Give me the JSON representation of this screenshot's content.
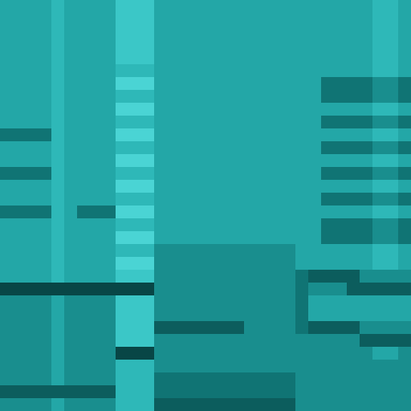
{
  "chart_data": {
    "type": "heatmap",
    "x": [
      0,
      1,
      2,
      3,
      4,
      5,
      6,
      7,
      8,
      9,
      10,
      11,
      12,
      13,
      14,
      15,
      16,
      17,
      18,
      19,
      20,
      21,
      22,
      23,
      24,
      25,
      26,
      27,
      28,
      29,
      30,
      31
    ],
    "y": [
      0,
      1,
      2,
      3,
      4,
      5,
      6,
      7,
      8,
      9,
      10,
      11,
      12,
      13,
      14,
      15,
      16,
      17,
      18,
      19,
      20,
      21,
      22,
      23,
      24,
      25,
      26,
      27,
      28,
      29,
      30,
      31
    ],
    "xlim": [
      -0.5,
      31.5
    ],
    "ylim": [
      31.5,
      -0.5
    ],
    "zlim": [
      0,
      9
    ],
    "tick_labels": false,
    "grid": false,
    "z": [
      [
        5,
        5,
        5,
        5,
        6,
        5,
        5,
        5,
        5,
        7,
        7,
        7,
        5,
        5,
        5,
        5,
        5,
        5,
        5,
        5,
        5,
        5,
        5,
        5,
        5,
        5,
        5,
        5,
        5,
        6,
        6,
        5
      ],
      [
        5,
        5,
        5,
        5,
        6,
        5,
        5,
        5,
        5,
        7,
        7,
        7,
        5,
        5,
        5,
        5,
        5,
        5,
        5,
        5,
        5,
        5,
        5,
        5,
        5,
        5,
        5,
        5,
        5,
        6,
        6,
        5
      ],
      [
        5,
        5,
        5,
        5,
        6,
        5,
        5,
        5,
        5,
        7,
        7,
        7,
        5,
        5,
        5,
        5,
        5,
        5,
        5,
        5,
        5,
        5,
        5,
        5,
        5,
        5,
        5,
        5,
        5,
        6,
        6,
        5
      ],
      [
        5,
        5,
        5,
        5,
        6,
        5,
        5,
        5,
        5,
        7,
        7,
        7,
        5,
        5,
        5,
        5,
        5,
        5,
        5,
        5,
        5,
        5,
        5,
        5,
        5,
        5,
        5,
        5,
        5,
        6,
        6,
        5
      ],
      [
        5,
        5,
        5,
        5,
        6,
        5,
        5,
        5,
        5,
        7,
        7,
        7,
        5,
        5,
        5,
        5,
        5,
        5,
        5,
        5,
        5,
        5,
        5,
        5,
        5,
        5,
        5,
        5,
        5,
        6,
        6,
        5
      ],
      [
        5,
        5,
        5,
        5,
        6,
        5,
        5,
        5,
        5,
        6,
        6,
        6,
        5,
        5,
        5,
        5,
        5,
        5,
        5,
        5,
        5,
        5,
        5,
        5,
        5,
        5,
        5,
        5,
        5,
        6,
        6,
        5
      ],
      [
        5,
        5,
        5,
        5,
        6,
        5,
        5,
        5,
        5,
        8,
        8,
        8,
        5,
        5,
        5,
        5,
        5,
        5,
        5,
        5,
        5,
        5,
        5,
        5,
        5,
        3,
        3,
        3,
        3,
        4,
        4,
        3
      ],
      [
        5,
        5,
        5,
        5,
        6,
        5,
        5,
        5,
        5,
        6,
        6,
        6,
        5,
        5,
        5,
        5,
        5,
        5,
        5,
        5,
        5,
        5,
        5,
        5,
        5,
        3,
        3,
        3,
        3,
        4,
        4,
        3
      ],
      [
        5,
        5,
        5,
        5,
        6,
        5,
        5,
        5,
        5,
        8,
        8,
        8,
        5,
        5,
        5,
        5,
        5,
        5,
        5,
        5,
        5,
        5,
        5,
        5,
        5,
        5,
        5,
        5,
        5,
        6,
        6,
        5
      ],
      [
        5,
        5,
        5,
        5,
        6,
        5,
        5,
        5,
        5,
        6,
        6,
        6,
        5,
        5,
        5,
        5,
        5,
        5,
        5,
        5,
        5,
        5,
        5,
        5,
        5,
        3,
        3,
        3,
        3,
        4,
        4,
        3
      ],
      [
        3,
        3,
        3,
        3,
        6,
        5,
        5,
        5,
        5,
        8,
        8,
        8,
        5,
        5,
        5,
        5,
        5,
        5,
        5,
        5,
        5,
        5,
        5,
        5,
        5,
        5,
        5,
        5,
        5,
        6,
        6,
        5
      ],
      [
        5,
        5,
        5,
        5,
        6,
        5,
        5,
        5,
        5,
        6,
        6,
        6,
        5,
        5,
        5,
        5,
        5,
        5,
        5,
        5,
        5,
        5,
        5,
        5,
        5,
        3,
        3,
        3,
        3,
        4,
        4,
        3
      ],
      [
        5,
        5,
        5,
        5,
        6,
        5,
        5,
        5,
        5,
        8,
        8,
        8,
        5,
        5,
        5,
        5,
        5,
        5,
        5,
        5,
        5,
        5,
        5,
        5,
        5,
        5,
        5,
        5,
        5,
        6,
        6,
        5
      ],
      [
        3,
        3,
        3,
        3,
        6,
        5,
        5,
        5,
        5,
        6,
        6,
        6,
        5,
        5,
        5,
        5,
        5,
        5,
        5,
        5,
        5,
        5,
        5,
        5,
        5,
        3,
        3,
        3,
        3,
        4,
        4,
        3
      ],
      [
        5,
        5,
        5,
        5,
        6,
        5,
        5,
        5,
        5,
        8,
        8,
        8,
        5,
        5,
        5,
        5,
        5,
        5,
        5,
        5,
        5,
        5,
        5,
        5,
        5,
        5,
        5,
        5,
        5,
        6,
        6,
        5
      ],
      [
        5,
        5,
        5,
        5,
        6,
        5,
        5,
        5,
        5,
        6,
        6,
        6,
        5,
        5,
        5,
        5,
        5,
        5,
        5,
        5,
        5,
        5,
        5,
        5,
        5,
        3,
        3,
        3,
        3,
        4,
        4,
        3
      ],
      [
        3,
        3,
        3,
        3,
        6,
        5,
        3,
        3,
        3,
        8,
        8,
        8,
        5,
        5,
        5,
        5,
        5,
        5,
        5,
        5,
        5,
        5,
        5,
        5,
        5,
        5,
        5,
        5,
        5,
        6,
        6,
        5
      ],
      [
        5,
        5,
        5,
        5,
        6,
        5,
        5,
        5,
        5,
        6,
        6,
        6,
        5,
        5,
        5,
        5,
        5,
        5,
        5,
        5,
        5,
        5,
        5,
        5,
        5,
        3,
        3,
        3,
        3,
        4,
        4,
        3
      ],
      [
        5,
        5,
        5,
        5,
        6,
        5,
        5,
        5,
        5,
        8,
        8,
        8,
        5,
        5,
        5,
        5,
        5,
        5,
        5,
        5,
        5,
        5,
        5,
        5,
        5,
        3,
        3,
        3,
        3,
        4,
        4,
        3
      ],
      [
        5,
        5,
        5,
        5,
        6,
        5,
        5,
        5,
        5,
        6,
        6,
        6,
        4,
        4,
        4,
        4,
        4,
        4,
        4,
        4,
        4,
        4,
        4,
        5,
        5,
        5,
        5,
        5,
        5,
        6,
        6,
        5
      ],
      [
        5,
        5,
        5,
        5,
        6,
        5,
        5,
        5,
        5,
        8,
        8,
        8,
        4,
        4,
        4,
        4,
        4,
        4,
        4,
        4,
        4,
        4,
        4,
        5,
        5,
        5,
        5,
        5,
        5,
        6,
        6,
        5
      ],
      [
        5,
        5,
        5,
        5,
        6,
        5,
        5,
        5,
        5,
        7,
        7,
        7,
        4,
        4,
        4,
        4,
        4,
        4,
        4,
        4,
        4,
        4,
        4,
        3,
        2,
        2,
        2,
        2,
        4,
        4,
        4,
        4
      ],
      [
        1,
        1,
        1,
        1,
        1,
        1,
        1,
        1,
        1,
        1,
        1,
        1,
        4,
        4,
        4,
        4,
        4,
        4,
        4,
        4,
        4,
        4,
        4,
        3,
        4,
        4,
        4,
        2,
        2,
        2,
        2,
        2
      ],
      [
        4,
        4,
        4,
        4,
        5,
        4,
        4,
        4,
        4,
        7,
        7,
        7,
        4,
        4,
        4,
        4,
        4,
        4,
        4,
        4,
        4,
        4,
        4,
        3,
        5,
        5,
        5,
        5,
        5,
        5,
        5,
        5
      ],
      [
        4,
        4,
        4,
        4,
        5,
        4,
        4,
        4,
        4,
        7,
        7,
        7,
        4,
        4,
        4,
        4,
        4,
        4,
        4,
        4,
        4,
        4,
        4,
        3,
        5,
        5,
        5,
        5,
        5,
        5,
        5,
        5
      ],
      [
        4,
        4,
        4,
        4,
        5,
        4,
        4,
        4,
        4,
        7,
        7,
        7,
        2,
        2,
        2,
        2,
        2,
        2,
        2,
        4,
        4,
        4,
        4,
        3,
        2,
        2,
        2,
        2,
        4,
        4,
        4,
        4
      ],
      [
        4,
        4,
        4,
        4,
        5,
        4,
        4,
        4,
        4,
        7,
        7,
        7,
        4,
        4,
        4,
        4,
        4,
        4,
        4,
        4,
        4,
        4,
        4,
        4,
        4,
        4,
        4,
        4,
        2,
        2,
        2,
        2
      ],
      [
        4,
        4,
        4,
        4,
        5,
        4,
        4,
        4,
        4,
        1,
        1,
        1,
        4,
        4,
        4,
        4,
        4,
        4,
        4,
        4,
        4,
        4,
        4,
        4,
        4,
        4,
        4,
        4,
        4,
        5,
        5,
        4
      ],
      [
        4,
        4,
        4,
        4,
        5,
        4,
        4,
        4,
        4,
        6,
        6,
        6,
        4,
        4,
        4,
        4,
        4,
        4,
        4,
        4,
        4,
        4,
        4,
        4,
        4,
        4,
        4,
        4,
        4,
        4,
        4,
        4
      ],
      [
        4,
        4,
        4,
        4,
        5,
        4,
        4,
        4,
        4,
        6,
        6,
        6,
        3,
        3,
        3,
        3,
        3,
        3,
        3,
        3,
        3,
        3,
        3,
        4,
        4,
        4,
        4,
        4,
        4,
        4,
        4,
        4
      ],
      [
        2,
        2,
        2,
        2,
        2,
        2,
        2,
        2,
        2,
        6,
        6,
        6,
        3,
        3,
        3,
        3,
        3,
        3,
        3,
        3,
        3,
        3,
        3,
        4,
        4,
        4,
        4,
        4,
        4,
        4,
        4,
        4
      ],
      [
        4,
        4,
        4,
        4,
        5,
        4,
        4,
        4,
        4,
        6,
        6,
        6,
        2,
        2,
        2,
        2,
        2,
        2,
        2,
        2,
        2,
        2,
        2,
        4,
        4,
        4,
        4,
        4,
        4,
        4,
        4,
        4
      ]
    ]
  }
}
